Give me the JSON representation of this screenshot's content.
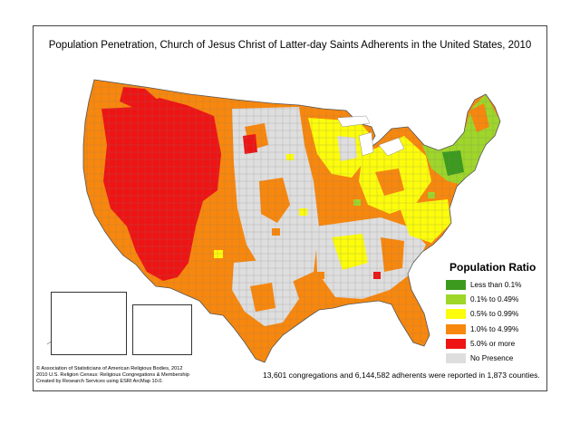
{
  "title": "Population Penetration, Church of Jesus Christ of Latter-day Saints Adherents in the United States, 2010",
  "legend": {
    "title": "Population Ratio",
    "items": [
      {
        "label": "Less than 0.1%",
        "color": "#3c9b1e"
      },
      {
        "label": "0.1% to 0.49%",
        "color": "#9ed62a"
      },
      {
        "label": "0.5% to 0.99%",
        "color": "#fcfc0c"
      },
      {
        "label": "1.0% to 4.99%",
        "color": "#f8870d"
      },
      {
        "label": "5.0% or more",
        "color": "#ee1414"
      },
      {
        "label": "No Presence",
        "color": "#dedede"
      }
    ]
  },
  "summary": "13,601 congregations and 6,144,582 adherents were reported in 1,873 counties.",
  "credits": {
    "line1": "© Association of Statisticians of American Religious Bodies, 2012",
    "line2": "2010 U.S. Religion Census: Religious Congregations & Membership",
    "line3": "Created by Research Services using ESRI ArcMap 10.0."
  }
}
